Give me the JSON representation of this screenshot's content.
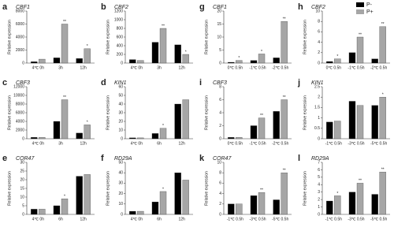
{
  "legend": [
    {
      "name": "P-",
      "color": "#000000"
    },
    {
      "name": "P+",
      "color": "#a6a6a6"
    }
  ],
  "y_label": "Relative expression",
  "chart_data": [
    {
      "type": "bar",
      "label": "a",
      "title": "CBF1",
      "categories": [
        "4℃ 0h",
        "3h",
        "12h"
      ],
      "ylim": [
        0,
        8000
      ],
      "yticks": [
        0,
        2000,
        4000,
        6000,
        8000
      ],
      "series": [
        {
          "values": [
            200,
            800,
            700
          ],
          "significance": [
            null,
            null,
            null
          ]
        },
        {
          "values": [
            600,
            6000,
            2200
          ],
          "significance": [
            null,
            "**",
            "*"
          ]
        }
      ]
    },
    {
      "type": "bar",
      "label": "b",
      "title": "CBF2",
      "categories": [
        "4℃ 0h",
        "3h",
        "12h"
      ],
      "ylim": [
        0,
        1200
      ],
      "yticks": [
        0,
        200,
        400,
        600,
        800,
        1000,
        1200
      ],
      "series": [
        {
          "values": [
            80,
            480,
            420
          ],
          "significance": [
            null,
            null,
            null
          ]
        },
        {
          "values": [
            60,
            800,
            200
          ],
          "significance": [
            null,
            "**",
            "*"
          ]
        }
      ]
    },
    {
      "type": "bar",
      "label": "g",
      "title": "CBF1",
      "categories": [
        "0℃ 0.5h",
        "-1℃ 0.5h",
        "-2℃ 0.5h"
      ],
      "ylim": [
        0,
        20
      ],
      "yticks": [
        0,
        5,
        10,
        15,
        20
      ],
      "series": [
        {
          "values": [
            0.3,
            1,
            2
          ],
          "significance": [
            null,
            null,
            null
          ]
        },
        {
          "values": [
            1,
            3.5,
            16
          ],
          "significance": [
            "*",
            "*",
            "**"
          ]
        }
      ]
    },
    {
      "type": "bar",
      "label": "h",
      "title": "CBF2",
      "categories": [
        "0℃ 0.5h",
        "-1℃ 0.5h",
        "-2℃ 0.5h"
      ],
      "ylim": [
        0,
        10
      ],
      "yticks": [
        0,
        2,
        4,
        6,
        8,
        10
      ],
      "series": [
        {
          "values": [
            0.3,
            2,
            0.8
          ],
          "significance": [
            null,
            null,
            null
          ]
        },
        {
          "values": [
            0.8,
            5,
            7
          ],
          "significance": [
            "*",
            "**",
            "**"
          ]
        }
      ]
    },
    {
      "type": "bar",
      "label": "c",
      "title": "CBF3",
      "categories": [
        "4℃ 0h",
        "3h",
        "12h"
      ],
      "ylim": [
        0,
        12000
      ],
      "yticks": [
        0,
        2000,
        4000,
        6000,
        8000,
        10000,
        12000
      ],
      "series": [
        {
          "values": [
            300,
            4000,
            1300
          ],
          "significance": [
            null,
            null,
            null
          ]
        },
        {
          "values": [
            300,
            9000,
            3200
          ],
          "significance": [
            null,
            "**",
            "*"
          ]
        }
      ]
    },
    {
      "type": "bar",
      "label": "d",
      "title": "KIN1",
      "categories": [
        "4℃ 0h",
        "6h",
        "12h"
      ],
      "ylim": [
        0,
        60
      ],
      "yticks": [
        0,
        10,
        20,
        30,
        40,
        50,
        60
      ],
      "series": [
        {
          "values": [
            1,
            6,
            40
          ],
          "significance": [
            null,
            null,
            null
          ]
        },
        {
          "values": [
            1,
            12,
            45
          ],
          "significance": [
            null,
            "*",
            null
          ]
        }
      ]
    },
    {
      "type": "bar",
      "label": "i",
      "title": "CBF3",
      "categories": [
        "0℃ 0.5h",
        "-1℃ 0.5h",
        "-2℃ 0.5h"
      ],
      "ylim": [
        0,
        8
      ],
      "yticks": [
        0,
        2,
        4,
        6,
        8
      ],
      "series": [
        {
          "values": [
            0.2,
            2,
            4.2
          ],
          "significance": [
            null,
            null,
            null
          ]
        },
        {
          "values": [
            0.2,
            3.2,
            6
          ],
          "significance": [
            null,
            "**",
            "**"
          ]
        }
      ]
    },
    {
      "type": "bar",
      "label": "j",
      "title": "KIN1",
      "categories": [
        "-1℃ 0.5h",
        "-3℃ 0.5h",
        "-5℃ 0.5h"
      ],
      "ylim": [
        0,
        2.5
      ],
      "yticks": [
        0,
        0.5,
        1,
        1.5,
        2,
        2.5
      ],
      "series": [
        {
          "values": [
            0.8,
            1.8,
            1.6
          ],
          "significance": [
            null,
            null,
            null
          ]
        },
        {
          "values": [
            0.85,
            1.6,
            2
          ],
          "significance": [
            null,
            null,
            "*"
          ]
        }
      ]
    },
    {
      "type": "bar",
      "label": "e",
      "title": "COR47",
      "categories": [
        "4℃ 0h",
        "6h",
        "12h"
      ],
      "ylim": [
        0,
        30
      ],
      "yticks": [
        0,
        5,
        10,
        15,
        20,
        25,
        30
      ],
      "series": [
        {
          "values": [
            3,
            5,
            22
          ],
          "significance": [
            null,
            null,
            null
          ]
        },
        {
          "values": [
            3,
            9,
            23
          ],
          "significance": [
            null,
            "*",
            null
          ]
        }
      ]
    },
    {
      "type": "bar",
      "label": "f",
      "title": "RD29A",
      "categories": [
        "4℃ 0h",
        "6h",
        "12h"
      ],
      "ylim": [
        0,
        50
      ],
      "yticks": [
        0,
        10,
        20,
        30,
        40,
        50
      ],
      "series": [
        {
          "values": [
            3,
            12,
            40
          ],
          "significance": [
            null,
            null,
            null
          ]
        },
        {
          "values": [
            3,
            22,
            33
          ],
          "significance": [
            null,
            "*",
            null
          ]
        }
      ]
    },
    {
      "type": "bar",
      "label": "k",
      "title": "COR47",
      "categories": [
        "-1℃ 0.5h",
        "-3℃ 0.5h",
        "-5℃ 0.5h"
      ],
      "ylim": [
        0,
        10
      ],
      "yticks": [
        0,
        2,
        4,
        6,
        8,
        10
      ],
      "series": [
        {
          "values": [
            2,
            3.6,
            2.8
          ],
          "significance": [
            null,
            null,
            null
          ]
        },
        {
          "values": [
            2,
            4.2,
            8
          ],
          "significance": [
            null,
            "**",
            "**"
          ]
        }
      ]
    },
    {
      "type": "bar",
      "label": "l",
      "title": "RD29A",
      "categories": [
        "-1℃ 0.5h",
        "-3℃ 0.5h",
        "-5℃ 0.5h"
      ],
      "ylim": [
        0,
        7
      ],
      "yticks": [
        0,
        1,
        2,
        3,
        4,
        5,
        6,
        7
      ],
      "series": [
        {
          "values": [
            1.8,
            3,
            2.7
          ],
          "significance": [
            null,
            null,
            null
          ]
        },
        {
          "values": [
            2.5,
            4.2,
            5.7
          ],
          "significance": [
            "*",
            "**",
            "**"
          ]
        }
      ]
    }
  ]
}
